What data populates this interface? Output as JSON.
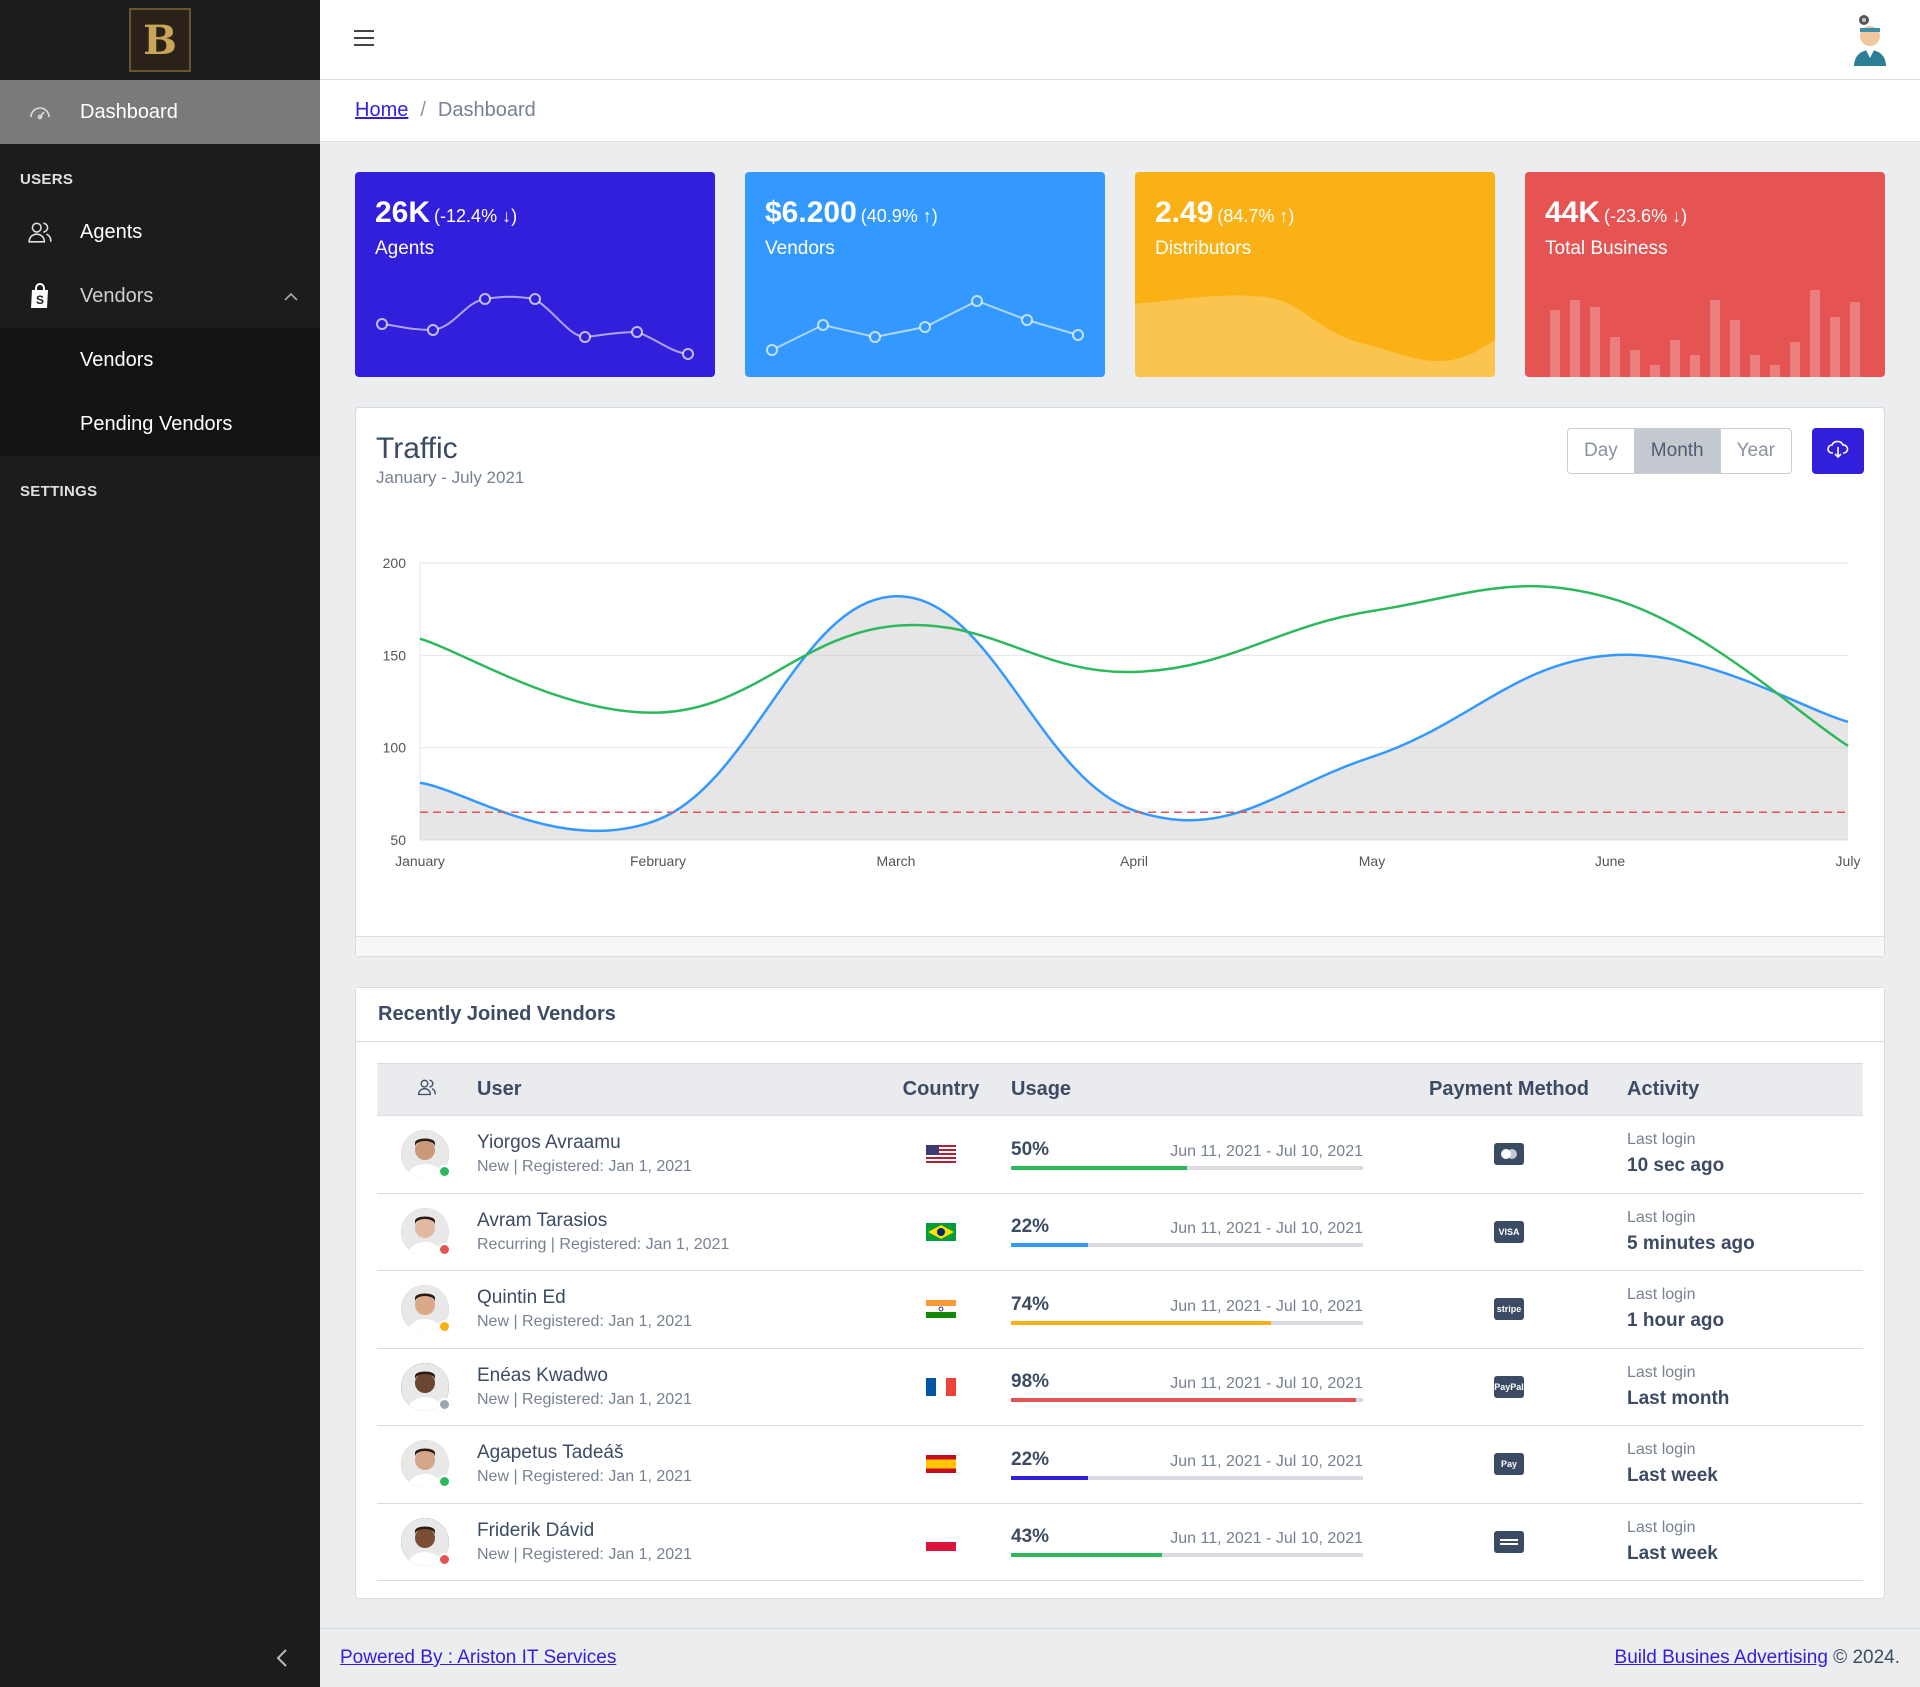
{
  "sidebar": {
    "brand_alt": "B",
    "dashboard": "Dashboard",
    "section_users": "USERS",
    "agents": "Agents",
    "vendors": "Vendors",
    "vendors_sub": "Vendors",
    "pending_vendors": "Pending Vendors",
    "section_settings": "SETTINGS"
  },
  "breadcrumb": {
    "home": "Home",
    "sep": "/",
    "current": "Dashboard"
  },
  "widgets": [
    {
      "value": "26K",
      "change": "(-12.4% ↓)",
      "label": "Agents",
      "color": "#321fdb"
    },
    {
      "value": "$6.200",
      "change": "(40.9% ↑)",
      "label": "Vendors",
      "color": "#3399ff"
    },
    {
      "value": "2.49",
      "change": "(84.7% ↑)",
      "label": "Distributors",
      "color": "#f9b115"
    },
    {
      "value": "44K",
      "change": "(-23.6% ↓)",
      "label": "Total Business",
      "color": "#e55353"
    }
  ],
  "traffic": {
    "title": "Traffic",
    "subtitle": "January - July 2021",
    "buttons": [
      "Day",
      "Month",
      "Year"
    ],
    "active_button": "Month"
  },
  "chart_data": {
    "type": "line",
    "categories": [
      "January",
      "February",
      "March",
      "April",
      "May",
      "June",
      "July"
    ],
    "yticks": [
      "200",
      "150",
      "100",
      "50"
    ],
    "ylim": [
      50,
      200
    ],
    "series": [
      {
        "color": "#3399ff",
        "fill": true,
        "values": [
          81,
          61,
          182,
          66,
          95,
          150,
          114
        ]
      },
      {
        "color": "#2eb85c",
        "values": [
          159,
          119,
          166,
          141,
          174,
          181,
          101
        ]
      },
      {
        "color": "#e55353",
        "dashed": true,
        "values": [
          65,
          65,
          65,
          65,
          65,
          65,
          65
        ]
      }
    ],
    "grid": true
  },
  "vendors_table": {
    "title": "Recently Joined Vendors",
    "headers": {
      "user": "User",
      "country": "Country",
      "usage": "Usage",
      "payment": "Payment Method",
      "activity": "Activity"
    },
    "rows": [
      {
        "name": "Yiorgos Avraamu",
        "meta": "New | Registered: Jan 1, 2021",
        "status": "#2eb85c",
        "flag": "us",
        "usage": "50%",
        "usage_val": 50,
        "bar": "#2eb85c",
        "period": "Jun 11, 2021 - Jul 10, 2021",
        "pay": "mastercard",
        "act_label": "Last login",
        "act_value": "10 sec ago",
        "skin": "#c99a7a"
      },
      {
        "name": "Avram Tarasios",
        "meta": "Recurring | Registered: Jan 1, 2021",
        "status": "#e55353",
        "flag": "br",
        "usage": "22%",
        "usage_val": 22,
        "bar": "#3399ff",
        "period": "Jun 11, 2021 - Jul 10, 2021",
        "pay": "VISA",
        "act_label": "Last login",
        "act_value": "5 minutes ago",
        "skin": "#e0b9a0"
      },
      {
        "name": "Quintin Ed",
        "meta": "New | Registered: Jan 1, 2021",
        "status": "#f9b115",
        "flag": "in",
        "usage": "74%",
        "usage_val": 74,
        "bar": "#f9b115",
        "period": "Jun 11, 2021 - Jul 10, 2021",
        "pay": "stripe",
        "act_label": "Last login",
        "act_value": "1 hour ago",
        "skin": "#d9a888"
      },
      {
        "name": "Enéas Kwadwo",
        "meta": "New | Registered: Jan 1, 2021",
        "status": "#9da5b1",
        "flag": "fr",
        "usage": "98%",
        "usage_val": 98,
        "bar": "#e55353",
        "period": "Jun 11, 2021 - Jul 10, 2021",
        "pay": "PayPal",
        "act_label": "Last login",
        "act_value": "Last month",
        "skin": "#6b4630"
      },
      {
        "name": "Agapetus Tadeáš",
        "meta": "New | Registered: Jan 1, 2021",
        "status": "#2eb85c",
        "flag": "es",
        "usage": "22%",
        "usage_val": 22,
        "bar": "#321fdb",
        "period": "Jun 11, 2021 - Jul 10, 2021",
        "pay": "Pay",
        "act_label": "Last login",
        "act_value": "Last week",
        "skin": "#d4a688"
      },
      {
        "name": "Friderik Dávid",
        "meta": "New | Registered: Jan 1, 2021",
        "status": "#e55353",
        "flag": "pl",
        "usage": "43%",
        "usage_val": 43,
        "bar": "#2eb85c",
        "period": "Jun 11, 2021 - Jul 10, 2021",
        "pay": "amex",
        "act_label": "Last login",
        "act_value": "Last week",
        "skin": "#7a4e35"
      }
    ]
  },
  "footer": {
    "left": "Powered By : Ariston IT Services",
    "right_link": "Build Busines Advertising",
    "right_text": "© 2024."
  }
}
